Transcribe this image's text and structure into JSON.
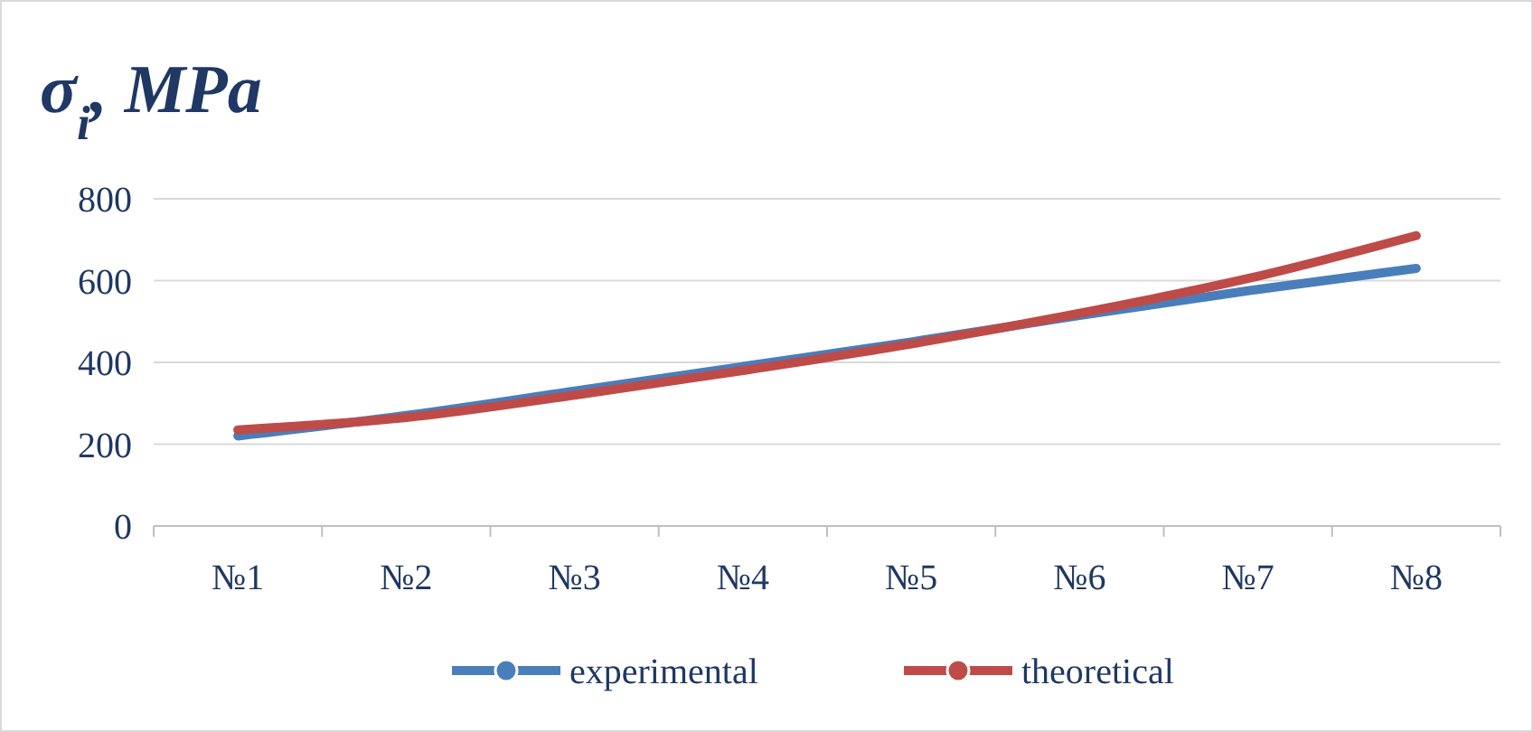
{
  "chart_data": {
    "type": "line",
    "title": "σ$_{i}$, MPa",
    "categories": [
      "№1",
      "№2",
      "№3",
      "№4",
      "№5",
      "№6",
      "№7",
      "№8"
    ],
    "series": [
      {
        "name": "experimental",
        "color": "#4a7ebb",
        "values": [
          220,
          270,
          330,
          390,
          450,
          515,
          575,
          630
        ]
      },
      {
        "name": "theoretical",
        "color": "#be4b48",
        "values": [
          235,
          265,
          320,
          380,
          445,
          520,
          605,
          710
        ]
      }
    ],
    "ylim": [
      0,
      800
    ],
    "yticks": [
      0,
      200,
      400,
      600,
      800
    ],
    "grid": "y",
    "legend": "bottom"
  }
}
